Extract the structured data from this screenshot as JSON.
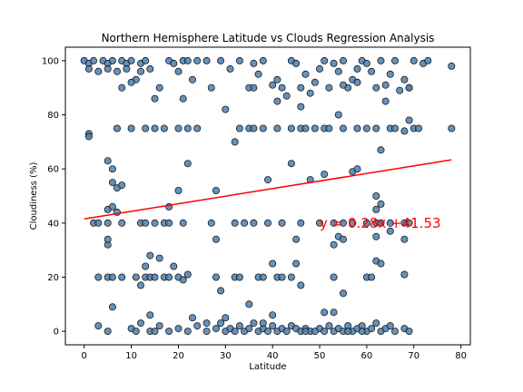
{
  "chart_data": {
    "type": "scatter",
    "title": "Northern Hemisphere Latitude vs Clouds Regression Analysis",
    "xlabel": "Latitude",
    "ylabel": "Cloudiness (%)",
    "xlim": [
      -4,
      82
    ],
    "ylim": [
      -5,
      105
    ],
    "xticks": [
      0,
      10,
      20,
      30,
      40,
      50,
      60,
      70,
      80
    ],
    "yticks": [
      0,
      20,
      40,
      60,
      80,
      100
    ],
    "grid": false,
    "colors": {
      "point_fill": "#4a7fb0",
      "point_edge": "#1a1a1a",
      "regression": "#ff0000"
    },
    "regression": {
      "slope": 0.28,
      "intercept": 41.53,
      "x_start": 0,
      "x_end": 78,
      "equation": "y = 0.28x +41.53"
    },
    "points": [
      [
        0,
        100
      ],
      [
        1,
        99
      ],
      [
        1,
        97
      ],
      [
        2,
        100
      ],
      [
        3,
        96
      ],
      [
        4,
        100
      ],
      [
        5,
        99
      ],
      [
        5,
        97
      ],
      [
        6,
        100
      ],
      [
        7,
        96
      ],
      [
        8,
        100
      ],
      [
        9,
        99
      ],
      [
        9,
        97
      ],
      [
        10,
        100
      ],
      [
        11,
        93
      ],
      [
        12,
        99
      ],
      [
        12,
        96
      ],
      [
        13,
        100
      ],
      [
        14,
        97
      ],
      [
        16,
        90
      ],
      [
        18,
        100
      ],
      [
        19,
        99
      ],
      [
        20,
        96
      ],
      [
        21,
        100
      ],
      [
        22,
        100
      ],
      [
        23,
        93
      ],
      [
        24,
        100
      ],
      [
        26,
        100
      ],
      [
        27,
        90
      ],
      [
        29,
        100
      ],
      [
        31,
        97
      ],
      [
        33,
        100
      ],
      [
        35,
        90
      ],
      [
        36,
        99
      ],
      [
        37,
        95
      ],
      [
        38,
        100
      ],
      [
        40,
        91
      ],
      [
        41,
        93
      ],
      [
        42,
        90
      ],
      [
        43,
        87
      ],
      [
        44,
        100
      ],
      [
        45,
        99
      ],
      [
        46,
        90
      ],
      [
        47,
        95
      ],
      [
        48,
        88
      ],
      [
        49,
        92
      ],
      [
        50,
        97
      ],
      [
        51,
        100
      ],
      [
        52,
        90
      ],
      [
        53,
        99
      ],
      [
        54,
        96
      ],
      [
        55,
        100
      ],
      [
        56,
        90
      ],
      [
        57,
        93
      ],
      [
        58,
        97
      ],
      [
        59,
        100
      ],
      [
        60,
        99
      ],
      [
        61,
        96
      ],
      [
        62,
        90
      ],
      [
        63,
        100
      ],
      [
        64,
        91
      ],
      [
        65,
        95
      ],
      [
        66,
        100
      ],
      [
        67,
        89
      ],
      [
        68,
        93
      ],
      [
        69,
        90
      ],
      [
        70,
        100
      ],
      [
        72,
        99
      ],
      [
        73,
        100
      ],
      [
        78,
        98
      ],
      [
        8,
        90
      ],
      [
        10,
        92
      ],
      [
        15,
        86
      ],
      [
        21,
        86
      ],
      [
        36,
        90
      ],
      [
        41,
        85
      ],
      [
        46,
        83
      ],
      [
        55,
        91
      ],
      [
        58,
        92
      ],
      [
        64,
        85
      ],
      [
        69,
        90
      ],
      [
        1,
        73
      ],
      [
        1,
        72
      ],
      [
        7,
        75
      ],
      [
        10,
        75
      ],
      [
        13,
        75
      ],
      [
        15,
        75
      ],
      [
        17,
        75
      ],
      [
        20,
        75
      ],
      [
        22,
        75
      ],
      [
        24,
        75
      ],
      [
        30,
        82
      ],
      [
        32,
        70
      ],
      [
        33,
        75
      ],
      [
        35,
        75
      ],
      [
        36,
        75
      ],
      [
        38,
        75
      ],
      [
        41,
        75
      ],
      [
        44,
        75
      ],
      [
        46,
        75
      ],
      [
        47,
        75
      ],
      [
        49,
        75
      ],
      [
        51,
        75
      ],
      [
        52,
        75
      ],
      [
        54,
        80
      ],
      [
        55,
        75
      ],
      [
        58,
        75
      ],
      [
        60,
        75
      ],
      [
        62,
        75
      ],
      [
        63,
        67
      ],
      [
        65,
        75
      ],
      [
        66,
        75
      ],
      [
        68,
        74
      ],
      [
        69,
        78
      ],
      [
        70,
        75
      ],
      [
        71,
        75
      ],
      [
        78,
        75
      ],
      [
        5,
        63
      ],
      [
        6,
        60
      ],
      [
        6,
        55
      ],
      [
        7,
        53
      ],
      [
        8,
        54
      ],
      [
        22,
        62
      ],
      [
        28,
        52
      ],
      [
        39,
        56
      ],
      [
        44,
        62
      ],
      [
        48,
        56
      ],
      [
        51,
        58
      ],
      [
        57,
        59
      ],
      [
        58,
        60
      ],
      [
        5,
        45
      ],
      [
        6,
        46
      ],
      [
        7,
        44
      ],
      [
        20,
        52
      ],
      [
        18,
        46
      ],
      [
        2,
        40
      ],
      [
        3,
        40
      ],
      [
        5,
        40
      ],
      [
        8,
        40
      ],
      [
        12,
        40
      ],
      [
        13,
        40
      ],
      [
        15,
        40
      ],
      [
        17,
        40
      ],
      [
        18,
        40
      ],
      [
        21,
        40
      ],
      [
        27,
        40
      ],
      [
        32,
        40
      ],
      [
        34,
        40
      ],
      [
        36,
        40
      ],
      [
        39,
        40
      ],
      [
        42,
        40
      ],
      [
        46,
        40
      ],
      [
        50,
        40
      ],
      [
        53,
        40
      ],
      [
        55,
        40
      ],
      [
        57,
        40
      ],
      [
        60,
        40
      ],
      [
        62,
        40
      ],
      [
        63,
        40
      ],
      [
        65,
        40
      ],
      [
        68,
        40
      ],
      [
        69,
        40
      ],
      [
        62,
        45
      ],
      [
        63,
        47
      ],
      [
        62,
        50
      ],
      [
        62,
        35
      ],
      [
        65,
        37
      ],
      [
        68,
        34
      ],
      [
        54,
        35
      ],
      [
        55,
        34
      ],
      [
        53,
        32
      ],
      [
        45,
        34
      ],
      [
        28,
        34
      ],
      [
        5,
        32
      ],
      [
        5,
        34
      ],
      [
        3,
        20
      ],
      [
        5,
        20
      ],
      [
        6,
        20
      ],
      [
        8,
        20
      ],
      [
        11,
        20
      ],
      [
        13,
        20
      ],
      [
        14,
        20
      ],
      [
        15,
        20
      ],
      [
        16,
        27
      ],
      [
        17,
        20
      ],
      [
        18,
        20
      ],
      [
        19,
        24
      ],
      [
        20,
        20
      ],
      [
        21,
        19
      ],
      [
        22,
        21
      ],
      [
        28,
        20
      ],
      [
        29,
        15
      ],
      [
        32,
        20
      ],
      [
        33,
        20
      ],
      [
        37,
        20
      ],
      [
        38,
        20
      ],
      [
        40,
        25
      ],
      [
        41,
        20
      ],
      [
        42,
        20
      ],
      [
        44,
        20
      ],
      [
        45,
        25
      ],
      [
        46,
        17
      ],
      [
        53,
        20
      ],
      [
        55,
        14
      ],
      [
        60,
        20
      ],
      [
        61,
        20
      ],
      [
        62,
        26
      ],
      [
        63,
        25
      ],
      [
        68,
        21
      ],
      [
        13,
        24
      ],
      [
        14,
        28
      ],
      [
        12,
        17
      ],
      [
        6,
        9
      ],
      [
        14,
        6
      ],
      [
        23,
        5
      ],
      [
        35,
        10
      ],
      [
        51,
        7
      ],
      [
        53,
        7
      ],
      [
        3,
        2
      ],
      [
        5,
        0
      ],
      [
        10,
        1
      ],
      [
        12,
        3
      ],
      [
        14,
        0
      ],
      [
        16,
        2
      ],
      [
        18,
        0
      ],
      [
        20,
        1
      ],
      [
        22,
        0
      ],
      [
        24,
        2
      ],
      [
        26,
        0
      ],
      [
        28,
        1
      ],
      [
        29,
        3
      ],
      [
        30,
        0
      ],
      [
        31,
        1
      ],
      [
        32,
        0
      ],
      [
        33,
        2
      ],
      [
        34,
        0
      ],
      [
        35,
        1
      ],
      [
        36,
        3
      ],
      [
        37,
        0
      ],
      [
        38,
        1
      ],
      [
        39,
        0
      ],
      [
        40,
        2
      ],
      [
        41,
        0
      ],
      [
        42,
        1
      ],
      [
        43,
        0
      ],
      [
        44,
        2
      ],
      [
        45,
        1
      ],
      [
        46,
        0
      ],
      [
        47,
        1
      ],
      [
        48,
        0
      ],
      [
        50,
        1
      ],
      [
        51,
        0
      ],
      [
        52,
        2
      ],
      [
        53,
        0
      ],
      [
        54,
        1
      ],
      [
        55,
        0
      ],
      [
        56,
        2
      ],
      [
        57,
        0
      ],
      [
        58,
        1
      ],
      [
        59,
        2
      ],
      [
        60,
        0
      ],
      [
        61,
        1
      ],
      [
        62,
        3
      ],
      [
        63,
        0
      ],
      [
        64,
        1
      ],
      [
        65,
        2
      ],
      [
        66,
        0
      ],
      [
        68,
        1
      ],
      [
        69,
        0
      ],
      [
        40,
        6
      ],
      [
        38,
        3
      ],
      [
        30,
        5
      ],
      [
        26,
        3
      ],
      [
        15,
        0
      ],
      [
        11,
        0
      ],
      [
        47,
        0
      ],
      [
        56,
        0
      ],
      [
        59,
        0
      ],
      [
        49,
        0
      ]
    ]
  }
}
